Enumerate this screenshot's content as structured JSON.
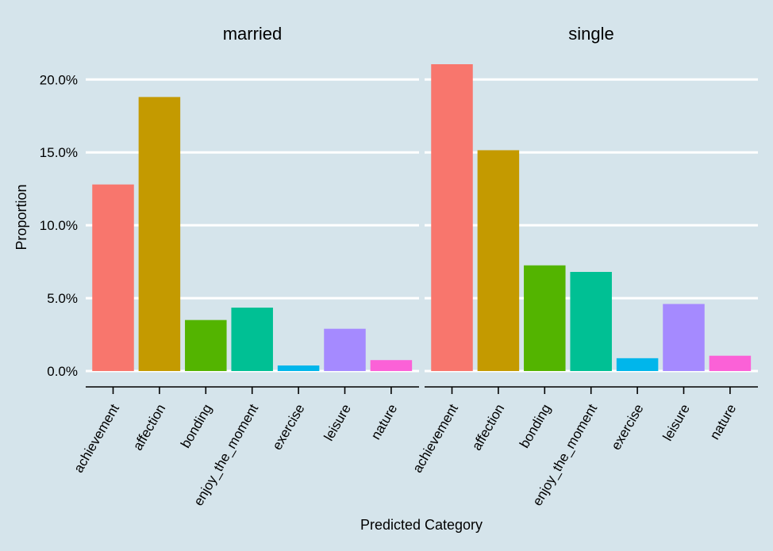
{
  "chart_data": {
    "type": "bar",
    "categories": [
      "achievement",
      "affection",
      "bonding",
      "enjoy_the_moment",
      "exercise",
      "leisure",
      "nature"
    ],
    "colors": [
      "#f8766d",
      "#c49a00",
      "#53b400",
      "#00c094",
      "#00b6eb",
      "#a58aff",
      "#fb61d7"
    ],
    "panels": [
      {
        "title": "married",
        "values": [
          12.8,
          18.8,
          3.5,
          4.35,
          0.38,
          2.9,
          0.75
        ]
      },
      {
        "title": "single",
        "values": [
          21.05,
          15.15,
          7.25,
          6.8,
          0.88,
          4.6,
          1.05
        ]
      }
    ],
    "y_ticks": [
      0,
      5,
      10,
      15,
      20
    ],
    "y_tick_labels": [
      "0.0%",
      "5.0%",
      "10.0%",
      "15.0%",
      "20.0%"
    ],
    "ylim": [
      0,
      21.05
    ],
    "xlabel": "Predicted Category",
    "ylabel": "Proportion",
    "background": "#d5e4eb",
    "grid": "horizontal major gridlines, white",
    "legend": "none"
  }
}
